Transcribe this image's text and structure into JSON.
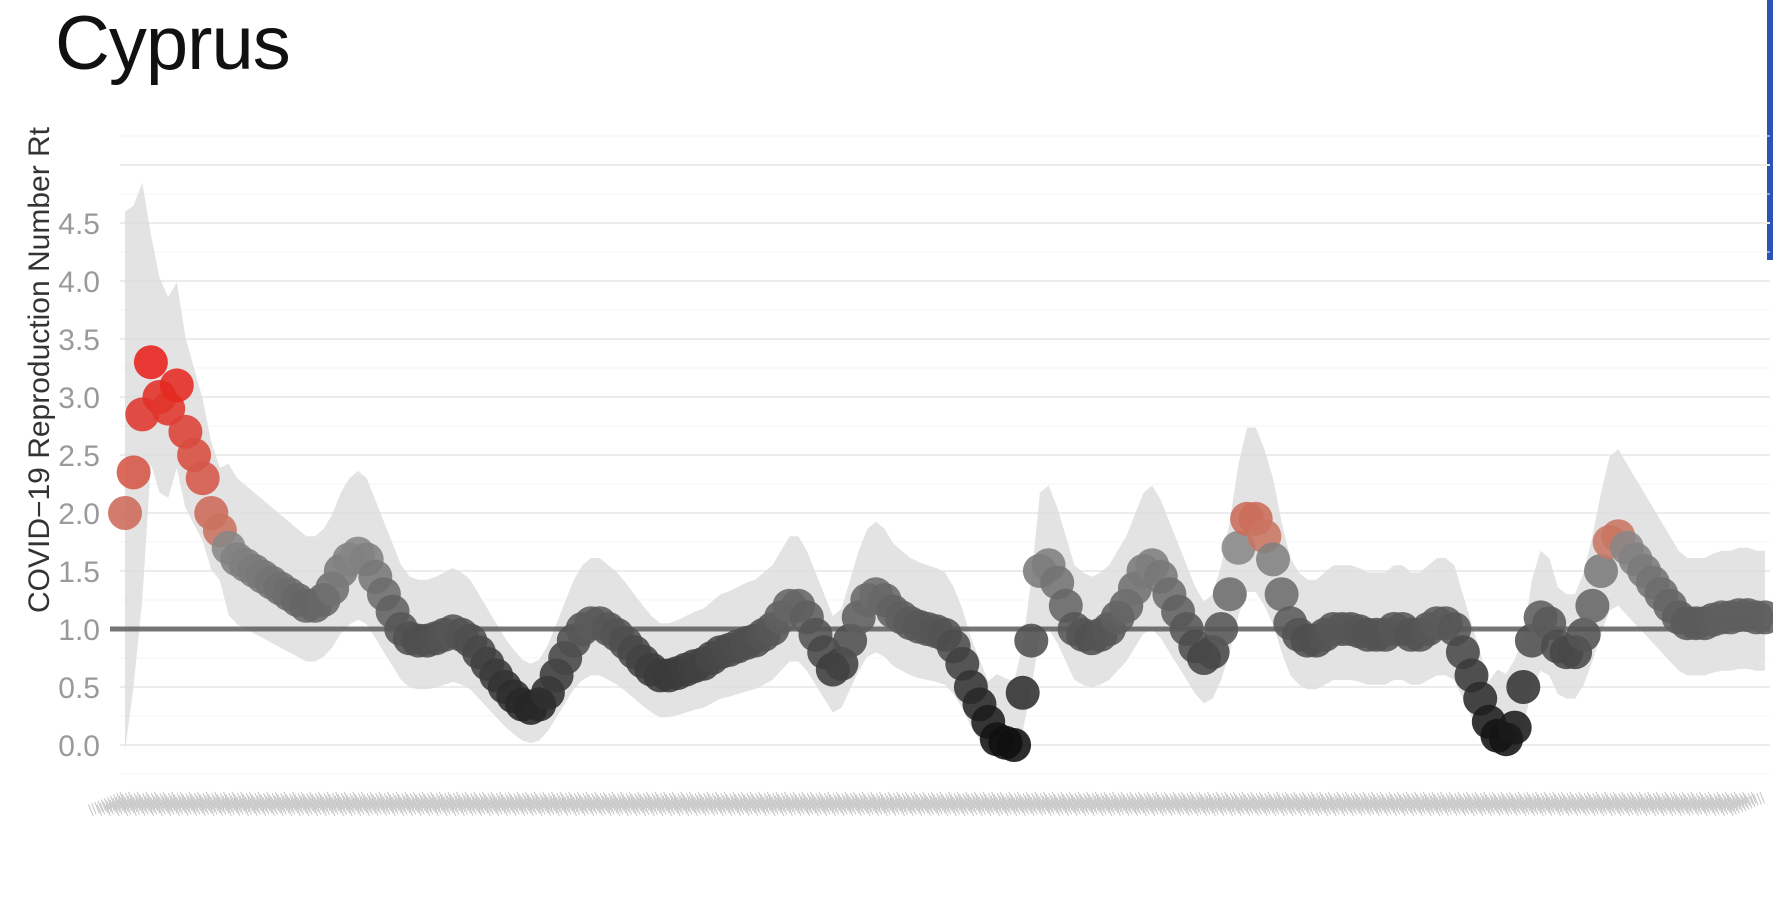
{
  "chart_data": {
    "type": "scatter",
    "title": "Cyprus",
    "ylabel": "COVID−19 Reproduction Number Rt",
    "xlabel": "",
    "ylim": [
      -0.3,
      5.4
    ],
    "yticks": [
      0.0,
      0.5,
      1.0,
      1.5,
      2.0,
      2.5,
      3.0,
      3.5,
      4.0,
      4.5
    ],
    "reference_line": 1.0,
    "grid": true,
    "x_tick_labels_legible": false,
    "colors": {
      "low": "#111111",
      "mid": "#8a8a8a",
      "high": "#e8201a",
      "band": "#dedede",
      "refline": "#555555"
    },
    "series": [
      {
        "values": [
          2.0,
          2.35,
          2.85,
          3.3,
          3.0,
          2.9,
          3.1,
          2.7,
          2.5,
          2.3,
          2.0,
          1.85,
          1.7,
          1.6,
          1.55,
          1.5,
          1.45,
          1.4,
          1.35,
          1.3,
          1.25,
          1.2,
          1.2,
          1.25,
          1.35,
          1.5,
          1.6,
          1.65,
          1.6,
          1.45,
          1.3,
          1.15,
          1.0,
          0.92,
          0.9,
          0.9,
          0.92,
          0.95,
          0.98,
          0.95,
          0.9,
          0.8,
          0.7,
          0.6,
          0.5,
          0.42,
          0.35,
          0.32,
          0.35,
          0.45,
          0.6,
          0.75,
          0.9,
          1.0,
          1.05,
          1.05,
          1.0,
          0.95,
          0.88,
          0.8,
          0.72,
          0.65,
          0.6,
          0.6,
          0.62,
          0.65,
          0.68,
          0.7,
          0.75,
          0.8,
          0.82,
          0.85,
          0.88,
          0.9,
          0.95,
          1.0,
          1.1,
          1.2,
          1.2,
          1.1,
          0.95,
          0.8,
          0.65,
          0.7,
          0.9,
          1.1,
          1.25,
          1.3,
          1.25,
          1.15,
          1.1,
          1.05,
          1.02,
          1.0,
          0.98,
          0.95,
          0.85,
          0.7,
          0.5,
          0.35,
          0.2,
          0.05,
          0.02,
          0.0,
          0.45,
          0.9,
          1.5,
          1.55,
          1.4,
          1.2,
          1.0,
          0.95,
          0.92,
          0.95,
          1.0,
          1.1,
          1.2,
          1.35,
          1.5,
          1.55,
          1.45,
          1.3,
          1.15,
          1.0,
          0.85,
          0.75,
          0.8,
          1.0,
          1.3,
          1.7,
          1.95,
          1.95,
          1.8,
          1.6,
          1.3,
          1.05,
          0.95,
          0.9,
          0.9,
          0.95,
          1.0,
          1.0,
          1.0,
          0.98,
          0.95,
          0.95,
          0.95,
          1.0,
          1.0,
          0.95,
          0.95,
          1.0,
          1.05,
          1.05,
          1.0,
          0.8,
          0.6,
          0.4,
          0.2,
          0.08,
          0.05,
          0.15,
          0.5,
          0.9,
          1.1,
          1.05,
          0.85,
          0.8,
          0.8,
          0.95,
          1.2,
          1.5,
          1.75,
          1.8,
          1.7,
          1.6,
          1.5,
          1.4,
          1.3,
          1.2,
          1.1,
          1.05,
          1.05,
          1.05,
          1.08,
          1.1,
          1.1,
          1.12,
          1.12,
          1.1,
          1.1
        ]
      }
    ]
  }
}
